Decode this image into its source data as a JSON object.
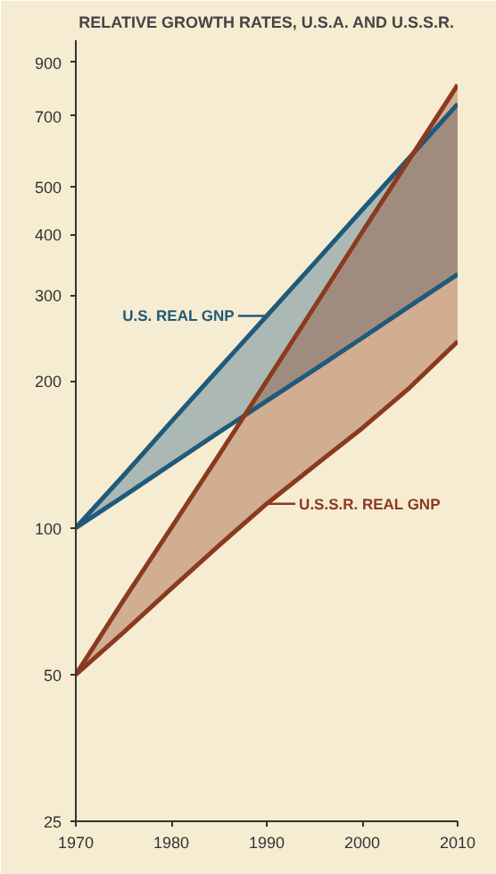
{
  "chart_data": {
    "type": "line",
    "title": "RELATIVE GROWTH RATES, U.S.A. AND U.S.S.R.",
    "log": true,
    "grid": false,
    "x": [
      1970,
      1975,
      1980,
      1985,
      1990,
      1995,
      2000,
      2005,
      2010
    ],
    "xlim": [
      1970,
      2010
    ],
    "xticks": [
      1970,
      1980,
      1990,
      2000,
      2010
    ],
    "ylim": [
      25,
      1000
    ],
    "yticks": [
      25,
      50,
      100,
      200,
      300,
      400,
      500,
      700,
      900
    ],
    "series": [
      {
        "name": "U.S. REAL GNP",
        "color": "#1f5a7a",
        "values": [
          100,
          128,
          165,
          212,
          272,
          349,
          449,
          576,
          740
        ],
        "lower": [
          100,
          116,
          135,
          157,
          182,
          211,
          245,
          285,
          331
        ],
        "upper": [
          100,
          128,
          165,
          212,
          272,
          349,
          449,
          576,
          740
        ]
      },
      {
        "color": "#1f5a7a",
        "values": [
          100,
          116,
          135,
          157,
          182,
          211,
          245,
          285,
          331
        ]
      },
      {
        "color": "#8b3a1e",
        "values": [
          50,
          71,
          100,
          141,
          200,
          284,
          404,
          572,
          810
        ]
      },
      {
        "name": "U.S.S.R. REAL GNP",
        "color": "#8b3a1e",
        "values": [
          50,
          61,
          75,
          92,
          112,
          134,
          160,
          194,
          241
        ],
        "lower": [
          50,
          61,
          75,
          92,
          112,
          134,
          160,
          194,
          241
        ],
        "upper": [
          50,
          71,
          100,
          141,
          200,
          284,
          404,
          572,
          810
        ]
      }
    ]
  }
}
